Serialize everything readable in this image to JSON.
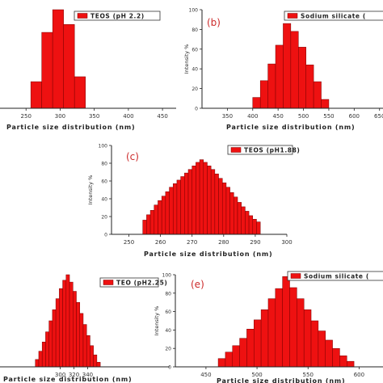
{
  "colors": {
    "bar": "#ee1111",
    "bar_edge": "#7a0000",
    "axis": "#222222",
    "letter": "#cc2a2a"
  },
  "chart_data": [
    {
      "type": "bar",
      "legend": "TEOS (pH 2.2)",
      "letter": "",
      "xlabel": "Particle size distribution (nm)",
      "ylabel": "",
      "xlim": [
        200,
        470
      ],
      "ylim": [
        0,
        100
      ],
      "xticks": [
        250,
        300,
        350,
        400,
        450
      ],
      "yticks": [],
      "bins": [
        {
          "x": 265,
          "y": 27
        },
        {
          "x": 281,
          "y": 77
        },
        {
          "x": 297,
          "y": 100
        },
        {
          "x": 313,
          "y": 85
        },
        {
          "x": 329,
          "y": 32
        }
      ],
      "bin_width": 16
    },
    {
      "type": "bar",
      "legend": "Sodium silicate (",
      "letter": "(b)",
      "xlabel": "Particle size distribution (nm)",
      "ylabel": "Intensity %",
      "xlim": [
        300,
        660
      ],
      "ylim": [
        0,
        100
      ],
      "xticks": [
        350,
        400,
        450,
        500,
        550,
        600,
        650
      ],
      "yticks": [
        0,
        20,
        40,
        60,
        80,
        100
      ],
      "bins": [
        {
          "x": 407.5,
          "y": 11
        },
        {
          "x": 422.5,
          "y": 28
        },
        {
          "x": 437.5,
          "y": 45
        },
        {
          "x": 452.5,
          "y": 64
        },
        {
          "x": 467.5,
          "y": 86
        },
        {
          "x": 482.5,
          "y": 78
        },
        {
          "x": 497.5,
          "y": 62
        },
        {
          "x": 512.5,
          "y": 44
        },
        {
          "x": 527.5,
          "y": 27
        },
        {
          "x": 542.5,
          "y": 9
        }
      ],
      "bin_width": 15
    },
    {
      "type": "bar",
      "legend": "TEOS (pH1.88)",
      "letter": "(c)",
      "xlabel": "Particle size distribution (nm)",
      "ylabel": "Intensity %",
      "xlim": [
        244.5,
        300
      ],
      "ylim": [
        0,
        100
      ],
      "xticks": [
        250,
        260,
        270,
        280,
        290,
        300
      ],
      "yticks": [
        0,
        20,
        40,
        60,
        80,
        100
      ],
      "bins": [
        {
          "x": 255,
          "y": 16
        },
        {
          "x": 256.2,
          "y": 22
        },
        {
          "x": 257.4,
          "y": 27
        },
        {
          "x": 258.6,
          "y": 33
        },
        {
          "x": 259.8,
          "y": 38
        },
        {
          "x": 261,
          "y": 43
        },
        {
          "x": 262.2,
          "y": 48
        },
        {
          "x": 263.4,
          "y": 53
        },
        {
          "x": 264.6,
          "y": 57
        },
        {
          "x": 265.8,
          "y": 61
        },
        {
          "x": 267,
          "y": 65
        },
        {
          "x": 268.2,
          "y": 69
        },
        {
          "x": 269.4,
          "y": 73
        },
        {
          "x": 270.6,
          "y": 77
        },
        {
          "x": 271.8,
          "y": 81
        },
        {
          "x": 273,
          "y": 84
        },
        {
          "x": 274.2,
          "y": 81
        },
        {
          "x": 275.4,
          "y": 77
        },
        {
          "x": 276.6,
          "y": 73
        },
        {
          "x": 277.8,
          "y": 68
        },
        {
          "x": 279,
          "y": 63
        },
        {
          "x": 280.2,
          "y": 58
        },
        {
          "x": 281.4,
          "y": 53
        },
        {
          "x": 282.6,
          "y": 47
        },
        {
          "x": 283.8,
          "y": 42
        },
        {
          "x": 285,
          "y": 36
        },
        {
          "x": 286.2,
          "y": 31
        },
        {
          "x": 287.4,
          "y": 26
        },
        {
          "x": 288.6,
          "y": 21
        },
        {
          "x": 289.8,
          "y": 17
        },
        {
          "x": 291,
          "y": 14
        }
      ],
      "bin_width": 1.2
    },
    {
      "type": "bar",
      "legend": "TEO (pH2.25)",
      "letter": "",
      "xlabel": "Particle size distribution (nm)",
      "ylabel": "",
      "xlim": [
        200,
        460
      ],
      "ylim": [
        0,
        100
      ],
      "xticks": [
        300,
        320,
        340
      ],
      "yticks": [],
      "bins": [
        {
          "x": 266,
          "y": 8
        },
        {
          "x": 271,
          "y": 17
        },
        {
          "x": 276,
          "y": 27
        },
        {
          "x": 281,
          "y": 38
        },
        {
          "x": 286,
          "y": 50
        },
        {
          "x": 291,
          "y": 62
        },
        {
          "x": 296,
          "y": 74
        },
        {
          "x": 301,
          "y": 85
        },
        {
          "x": 306,
          "y": 94
        },
        {
          "x": 311,
          "y": 100
        },
        {
          "x": 316,
          "y": 92
        },
        {
          "x": 321,
          "y": 82
        },
        {
          "x": 326,
          "y": 70
        },
        {
          "x": 331,
          "y": 58
        },
        {
          "x": 336,
          "y": 46
        },
        {
          "x": 341,
          "y": 34
        },
        {
          "x": 346,
          "y": 23
        },
        {
          "x": 351,
          "y": 13
        },
        {
          "x": 356,
          "y": 5
        }
      ],
      "bin_width": 5
    },
    {
      "type": "bar",
      "legend": "Sodium silicate (",
      "letter": "(e)",
      "xlabel": "Particle size distribution (nm)",
      "ylabel": "Intensity %",
      "xlim": [
        420,
        625
      ],
      "ylim": [
        0,
        100
      ],
      "xticks": [
        450,
        500,
        550,
        600
      ],
      "yticks": [
        0,
        20,
        40,
        60,
        80,
        100
      ],
      "bins": [
        {
          "x": 465.5,
          "y": 9
        },
        {
          "x": 472.5,
          "y": 16
        },
        {
          "x": 479.5,
          "y": 23
        },
        {
          "x": 486.5,
          "y": 31
        },
        {
          "x": 493.5,
          "y": 41
        },
        {
          "x": 500.5,
          "y": 51
        },
        {
          "x": 507.5,
          "y": 62
        },
        {
          "x": 514.5,
          "y": 74
        },
        {
          "x": 521.5,
          "y": 85
        },
        {
          "x": 528.5,
          "y": 98
        },
        {
          "x": 535.5,
          "y": 86
        },
        {
          "x": 542.5,
          "y": 74
        },
        {
          "x": 549.5,
          "y": 62
        },
        {
          "x": 556.5,
          "y": 50
        },
        {
          "x": 563.5,
          "y": 39
        },
        {
          "x": 570.5,
          "y": 29
        },
        {
          "x": 577.5,
          "y": 20
        },
        {
          "x": 584.5,
          "y": 12
        },
        {
          "x": 591.5,
          "y": 6
        }
      ],
      "bin_width": 7
    }
  ]
}
